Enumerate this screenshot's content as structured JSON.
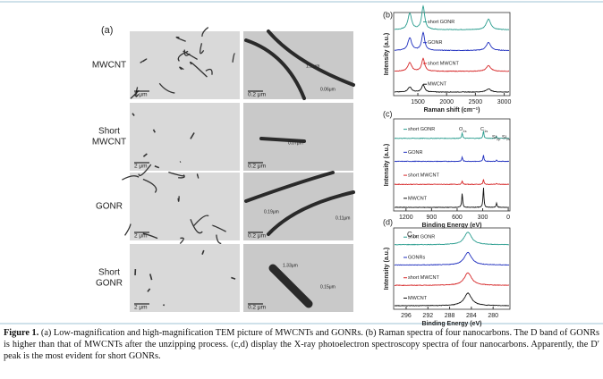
{
  "figure": {
    "tem": {
      "label": "(a)",
      "rows": [
        {
          "name": [
            "MWCNT"
          ],
          "low_scale": "2 μm",
          "high_scale": "0.2 μm",
          "annotations": [
            "1.1 μm",
            "0.06μm"
          ]
        },
        {
          "name": [
            "Short",
            "MWCNT"
          ],
          "low_scale": "2 μm",
          "high_scale": "0.2 μm",
          "annotations": [
            "0.07μm"
          ]
        },
        {
          "name": [
            "GONR"
          ],
          "low_scale": "2 μm",
          "high_scale": "0.2 μm",
          "annotations": [
            "0.19μm",
            "0.11μm"
          ]
        },
        {
          "name": [
            "Short",
            "GONR"
          ],
          "low_scale": "2 μm",
          "high_scale": "0.2 μm",
          "annotations": [
            "1.33μm",
            "0.15μm"
          ]
        }
      ]
    },
    "plots": [
      {
        "label": "(b)",
        "xlabel": "Raman shift (cm⁻¹)",
        "ylabel": "Intensity (a.u.)",
        "xlim": [
          1080,
          3100
        ],
        "xticks": [
          1500,
          2000,
          2500,
          3000
        ],
        "traces": [
          "short GONR",
          "GONR",
          "short MWCNT",
          "MWCNT"
        ],
        "colors": [
          "#2a9d8f",
          "#1f2fbf",
          "#d62728",
          "#111111"
        ],
        "annotations": []
      },
      {
        "label": "(c)",
        "xlabel": "Binding Energy (eV)",
        "ylabel": "Intensity (a.u.)",
        "xlim": [
          1345,
          -20
        ],
        "xticks": [
          1200,
          900,
          600,
          300,
          0
        ],
        "traces": [
          "short GONR",
          "GONR",
          "short MWCNT",
          "MWCNT"
        ],
        "colors": [
          "#2a9d8f",
          "#1f2fbf",
          "#d62728",
          "#111111"
        ],
        "annotations": [
          {
            "text": "O",
            "sub": "1s"
          },
          {
            "text": "C",
            "sub": "1s"
          },
          {
            "text": "Si",
            "sub": "2p"
          },
          {
            "text": "Si",
            "sub": "2s"
          }
        ]
      },
      {
        "label": "(d)",
        "xlabel": "Binding Energy (eV)",
        "ylabel": "Intensity (a.u.)",
        "xlim": [
          298.3,
          276.9
        ],
        "xticks": [
          296,
          292,
          288,
          284,
          280
        ],
        "traces": [
          "short GONR",
          "GONRs",
          "short MWCNT",
          "MWCNT"
        ],
        "colors": [
          "#2a9d8f",
          "#1f2fbf",
          "#d62728",
          "#111111"
        ],
        "annotations": [
          {
            "text": "C",
            "sub": "1s"
          }
        ]
      }
    ],
    "caption": {
      "label": "Figure 1.",
      "text": "(a) Low-magnification and high-magnification TEM picture of MWCNTs and GONRs. (b) Raman spectra of four nanocarbons. The D band of GONRs is higher than that of MWCNTs after the unzipping process. (c,d) display the X-ray photoelectron spectroscopy spectra of four nanocarbons. Apparently, the D′ peak is the most evident for short GONRs."
    }
  }
}
